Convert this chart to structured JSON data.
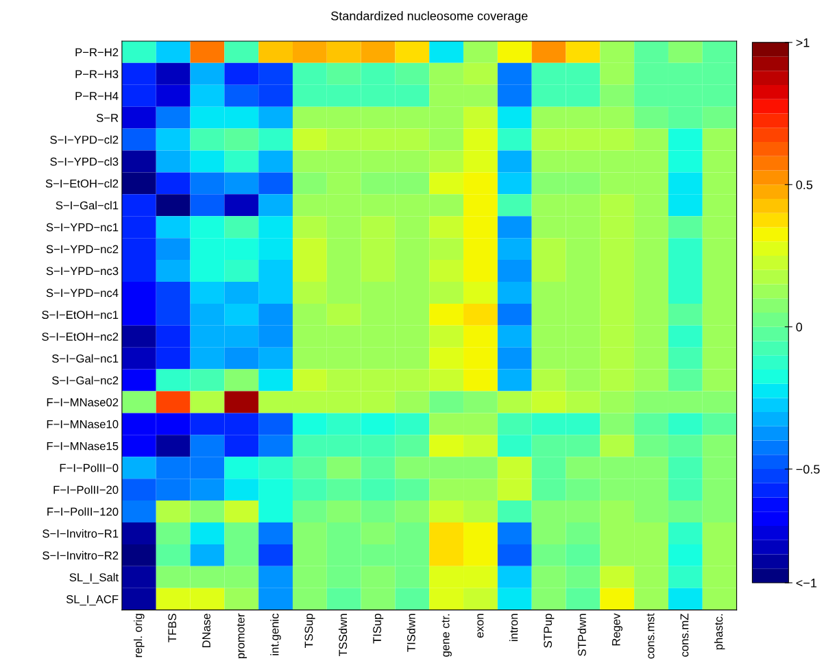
{
  "chart_data": {
    "type": "heatmap",
    "title": "Standardized nucleosome coverage",
    "categories": [
      "repl. orig",
      "TFBS",
      "DNase",
      "promoter",
      "int.genic",
      "TSSup",
      "TSSdwn",
      "TISup",
      "TISdwn",
      "gene ctr.",
      "exon",
      "intron",
      "STPup",
      "STPdwn",
      "Regev",
      "cons.mst",
      "cons.mZ",
      "phastc."
    ],
    "y_categories": [
      "P−R−H2",
      "P−R−H3",
      "P−R−H4",
      "S−R",
      "S−I−YPD−cl2",
      "S−I−YPD−cl3",
      "S−I−EtOH−cl2",
      "S−I−Gal−cl1",
      "S−I−YPD−nc1",
      "S−I−YPD−nc2",
      "S−I−YPD−nc3",
      "S−I−YPD−nc4",
      "S−I−EtOH−nc1",
      "S−I−EtOH−nc2",
      "S−I−Gal−nc1",
      "S−I−Gal−nc2",
      "F−I−MNase02",
      "F−I−MNase10",
      "F−I−MNase15",
      "F−I−PolII−0",
      "F−I−PolII−20",
      "F−I−PolII−120",
      "S−I−Invitro−R1",
      "S−I−Invitro−R2",
      "SL_I_Salt",
      "SL_I_ACF"
    ],
    "cells": [
      [
        -0.13,
        -0.28,
        0.57,
        -0.07,
        0.43,
        0.48,
        0.43,
        0.48,
        0.38,
        -0.23,
        0.14,
        0.33,
        0.53,
        0.38,
        0.1,
        -0.03,
        0.05,
        -0.03
      ],
      [
        -0.6,
        -0.76,
        -0.33,
        -0.57,
        -0.54,
        -0.07,
        -0.03,
        -0.07,
        -0.03,
        0.14,
        0.19,
        -0.43,
        -0.07,
        -0.07,
        0.1,
        -0.03,
        -0.03,
        -0.03
      ],
      [
        -0.6,
        -0.71,
        -0.3,
        -0.48,
        -0.54,
        -0.07,
        -0.07,
        -0.07,
        -0.07,
        0.1,
        0.14,
        -0.43,
        -0.07,
        -0.07,
        0.05,
        -0.03,
        -0.03,
        -0.03
      ],
      [
        -0.71,
        -0.43,
        -0.23,
        -0.23,
        -0.33,
        0.1,
        0.1,
        0.1,
        0.1,
        0.14,
        0.24,
        -0.23,
        0.1,
        0.1,
        0.14,
        0.0,
        -0.03,
        0.0
      ],
      [
        -0.48,
        -0.28,
        -0.07,
        -0.03,
        -0.13,
        0.24,
        0.19,
        0.19,
        0.19,
        0.1,
        0.29,
        -0.13,
        0.19,
        0.19,
        0.19,
        0.1,
        -0.19,
        0.1
      ],
      [
        -0.81,
        -0.33,
        -0.23,
        -0.13,
        -0.33,
        0.14,
        0.1,
        0.1,
        0.1,
        0.19,
        0.29,
        -0.33,
        0.1,
        0.1,
        0.14,
        0.1,
        -0.19,
        0.1
      ],
      [
        -0.88,
        -0.57,
        -0.45,
        -0.38,
        -0.48,
        0.05,
        0.1,
        0.05,
        0.05,
        0.29,
        0.33,
        -0.28,
        0.05,
        0.05,
        0.14,
        0.1,
        -0.23,
        0.1
      ],
      [
        -0.6,
        -0.86,
        -0.5,
        -0.78,
        -0.33,
        0.1,
        0.14,
        0.1,
        0.14,
        0.14,
        0.33,
        -0.07,
        0.1,
        0.14,
        0.19,
        0.1,
        -0.23,
        0.1
      ],
      [
        -0.57,
        -0.28,
        -0.19,
        -0.07,
        -0.23,
        0.19,
        0.14,
        0.19,
        0.14,
        0.24,
        0.33,
        -0.4,
        0.14,
        0.14,
        0.19,
        0.1,
        -0.03,
        0.1
      ],
      [
        -0.57,
        -0.4,
        -0.19,
        -0.19,
        -0.23,
        0.24,
        0.14,
        0.19,
        0.14,
        0.19,
        0.33,
        -0.33,
        0.19,
        0.14,
        0.19,
        0.1,
        -0.13,
        0.1
      ],
      [
        -0.6,
        -0.33,
        -0.19,
        -0.13,
        -0.28,
        0.24,
        0.14,
        0.19,
        0.14,
        0.24,
        0.33,
        -0.4,
        0.19,
        0.14,
        0.19,
        0.14,
        -0.13,
        0.14
      ],
      [
        -0.66,
        -0.54,
        -0.28,
        -0.33,
        -0.28,
        0.19,
        0.1,
        0.14,
        0.1,
        0.19,
        0.29,
        -0.33,
        0.14,
        0.1,
        0.19,
        0.1,
        -0.13,
        0.1
      ],
      [
        -0.66,
        -0.54,
        -0.33,
        -0.28,
        -0.4,
        0.14,
        0.19,
        0.1,
        0.14,
        0.33,
        0.38,
        -0.43,
        0.1,
        0.14,
        0.19,
        0.1,
        -0.03,
        0.1
      ],
      [
        -0.81,
        -0.57,
        -0.33,
        -0.33,
        -0.4,
        0.14,
        0.14,
        0.14,
        0.14,
        0.24,
        0.33,
        -0.33,
        0.14,
        0.14,
        0.19,
        0.1,
        -0.13,
        0.1
      ],
      [
        -0.76,
        -0.57,
        -0.33,
        -0.4,
        -0.33,
        0.14,
        0.14,
        0.1,
        0.14,
        0.29,
        0.33,
        -0.4,
        0.1,
        0.1,
        0.19,
        0.1,
        -0.07,
        0.1
      ],
      [
        -0.66,
        -0.13,
        -0.07,
        0.05,
        -0.23,
        0.24,
        0.19,
        0.19,
        0.19,
        0.24,
        0.33,
        -0.33,
        0.19,
        0.14,
        0.19,
        0.14,
        -0.03,
        0.14
      ],
      [
        0.05,
        0.67,
        0.19,
        0.93,
        0.19,
        0.19,
        0.19,
        0.19,
        0.14,
        0.0,
        0.05,
        0.19,
        0.24,
        0.19,
        0.14,
        0.05,
        0.05,
        0.05
      ],
      [
        -0.66,
        -0.66,
        -0.6,
        -0.6,
        -0.48,
        -0.19,
        -0.13,
        -0.19,
        -0.13,
        0.1,
        0.1,
        -0.07,
        -0.13,
        -0.13,
        0.05,
        -0.03,
        -0.13,
        -0.03
      ],
      [
        -0.66,
        -0.81,
        -0.45,
        -0.6,
        -0.45,
        -0.1,
        -0.07,
        -0.1,
        -0.03,
        0.29,
        0.24,
        -0.13,
        -0.03,
        -0.03,
        0.19,
        0.0,
        -0.03,
        0.05
      ],
      [
        -0.33,
        -0.43,
        -0.43,
        -0.19,
        -0.13,
        -0.03,
        0.05,
        -0.03,
        0.05,
        0.05,
        0.05,
        0.24,
        -0.03,
        0.05,
        0.05,
        0.05,
        -0.07,
        0.05
      ],
      [
        -0.48,
        -0.43,
        -0.4,
        -0.23,
        -0.19,
        -0.07,
        -0.03,
        -0.07,
        -0.03,
        0.1,
        0.1,
        0.24,
        -0.03,
        0.0,
        0.05,
        0.05,
        -0.07,
        0.05
      ],
      [
        -0.43,
        0.19,
        0.05,
        0.24,
        -0.19,
        0.0,
        0.05,
        0.0,
        0.05,
        0.24,
        0.19,
        -0.1,
        0.05,
        0.05,
        0.14,
        0.05,
        0.0,
        0.05
      ],
      [
        -0.84,
        0.0,
        -0.23,
        0.0,
        -0.45,
        0.05,
        0.0,
        0.05,
        0.0,
        0.38,
        0.33,
        -0.45,
        0.05,
        0.0,
        0.14,
        0.14,
        -0.13,
        0.14
      ],
      [
        -0.88,
        -0.03,
        -0.33,
        0.0,
        -0.54,
        0.05,
        0.0,
        0.0,
        0.0,
        0.38,
        0.33,
        -0.48,
        0.0,
        -0.03,
        0.14,
        0.14,
        -0.19,
        0.14
      ],
      [
        -0.84,
        0.05,
        0.05,
        0.05,
        -0.38,
        0.05,
        0.0,
        0.05,
        0.0,
        0.29,
        0.29,
        -0.28,
        0.05,
        0.0,
        0.24,
        0.1,
        -0.13,
        0.1
      ],
      [
        -0.84,
        0.29,
        0.29,
        0.14,
        -0.38,
        0.05,
        -0.03,
        0.05,
        -0.03,
        0.29,
        0.24,
        -0.23,
        0.05,
        -0.03,
        0.33,
        0.1,
        -0.23,
        0.1
      ]
    ],
    "clim": [
      -0.9,
      1
    ],
    "cticks": [
      {
        "value": -0.9,
        "label": "<−1"
      },
      {
        "value": -0.5,
        "label": "−0.5"
      },
      0,
      0.5,
      {
        "value": 1,
        "label": ">1"
      }
    ]
  }
}
